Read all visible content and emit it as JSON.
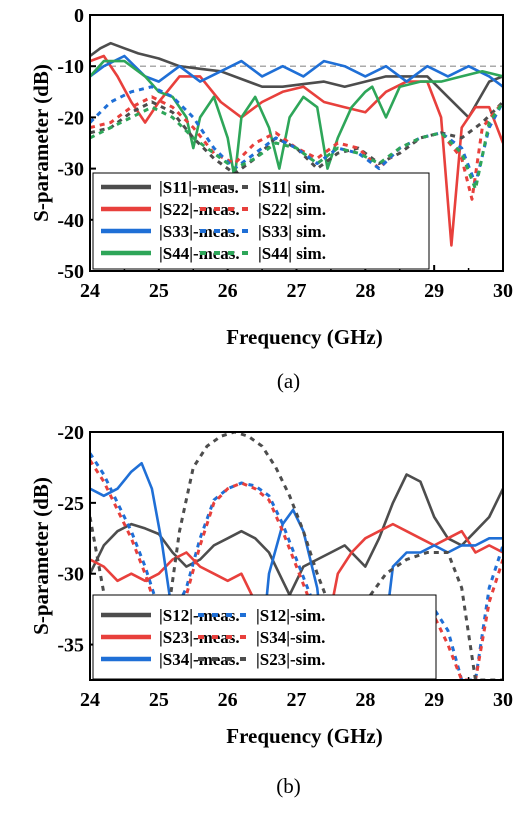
{
  "chart_data": [
    {
      "type": "line",
      "caption": "(a)",
      "xlabel": "Frequency (GHz)",
      "ylabel": "S-parameter (dB)",
      "xlim": [
        24,
        30
      ],
      "ylim": [
        -50,
        0
      ],
      "x_ticks": [
        "24",
        "25",
        "26",
        "27",
        "28",
        "29",
        "30"
      ],
      "y_ticks": [
        "0",
        "-10",
        "-20",
        "-30",
        "-40",
        "-50"
      ],
      "reference_line": {
        "y": -10,
        "style": "dashed",
        "color": "#aaaaaa"
      },
      "legend_position": "bottom-left",
      "series": [
        {
          "name": "|S11|-meas.",
          "color": "#4d4d4d",
          "style": "solid",
          "x": [
            24,
            24.15,
            24.3,
            24.5,
            24.7,
            25.0,
            25.3,
            25.6,
            25.9,
            26.2,
            26.5,
            26.8,
            27.1,
            27.4,
            27.7,
            28.0,
            28.3,
            28.6,
            28.9,
            29.2,
            29.5,
            29.8,
            30
          ],
          "y": [
            -8,
            -6.5,
            -5.5,
            -6.5,
            -7.5,
            -8.5,
            -10,
            -10.5,
            -11,
            -12.5,
            -14,
            -14,
            -13.5,
            -13,
            -14,
            -13,
            -12,
            -12,
            -12,
            -16,
            -20,
            -13,
            -12
          ]
        },
        {
          "name": "|S22|-meas.",
          "color": "#e8403c",
          "style": "solid",
          "x": [
            24,
            24.2,
            24.4,
            24.6,
            24.8,
            25.0,
            25.3,
            25.6,
            25.9,
            26.2,
            26.5,
            26.8,
            27.1,
            27.4,
            27.7,
            28.0,
            28.3,
            28.6,
            28.9,
            29.1,
            29.25,
            29.4,
            29.6,
            29.8,
            30
          ],
          "y": [
            -9,
            -8,
            -12,
            -17,
            -21,
            -17,
            -12,
            -12,
            -17,
            -20,
            -17,
            -15,
            -14,
            -17,
            -18,
            -19,
            -15,
            -13,
            -13,
            -20,
            -45,
            -22,
            -18,
            -18,
            -25
          ]
        },
        {
          "name": "|S33|-meas.",
          "color": "#1f6fd6",
          "style": "solid",
          "x": [
            24,
            24.2,
            24.5,
            24.8,
            25.0,
            25.3,
            25.6,
            25.9,
            26.2,
            26.5,
            26.8,
            27.1,
            27.4,
            27.7,
            28.0,
            28.3,
            28.6,
            28.9,
            29.2,
            29.5,
            29.8,
            30
          ],
          "y": [
            -12,
            -10,
            -8,
            -12,
            -13,
            -10,
            -13,
            -11,
            -9,
            -12,
            -10,
            -12,
            -9,
            -10,
            -12,
            -10,
            -13,
            -10,
            -12,
            -10,
            -12,
            -14
          ]
        },
        {
          "name": "|S44|-meas.",
          "color": "#2ea659",
          "style": "solid",
          "x": [
            24,
            24.2,
            24.5,
            24.8,
            25.0,
            25.2,
            25.4,
            25.5,
            25.6,
            25.8,
            26.0,
            26.1,
            26.2,
            26.4,
            26.6,
            26.75,
            26.9,
            27.1,
            27.3,
            27.45,
            27.6,
            27.8,
            28.0,
            28.1,
            28.3,
            28.5,
            28.8,
            29.1,
            29.4,
            29.7,
            30
          ],
          "y": [
            -12,
            -9,
            -9,
            -12,
            -15,
            -16,
            -20,
            -26,
            -20,
            -16,
            -24,
            -32,
            -20,
            -16,
            -22,
            -30,
            -20,
            -16,
            -18,
            -30,
            -24,
            -18,
            -15,
            -14,
            -20,
            -14,
            -13,
            -13,
            -12,
            -11,
            -12
          ]
        },
        {
          "name": "|S11| sim.",
          "color": "#4d4d4d",
          "style": "dotted",
          "x": [
            24,
            24.3,
            24.6,
            24.9,
            25.2,
            25.5,
            25.8,
            26.1,
            26.4,
            26.7,
            27.0,
            27.3,
            27.6,
            27.9,
            28.2,
            28.5,
            28.8,
            29.1,
            29.4,
            29.7,
            30
          ],
          "y": [
            -23,
            -22,
            -19,
            -17,
            -19,
            -24,
            -28,
            -31,
            -28,
            -24,
            -26,
            -30,
            -27,
            -26,
            -29,
            -27,
            -24,
            -23,
            -24,
            -21,
            -17
          ]
        },
        {
          "name": "|S22| sim.",
          "color": "#e8403c",
          "style": "dotted",
          "x": [
            24,
            24.3,
            24.6,
            24.9,
            25.2,
            25.5,
            25.8,
            26.1,
            26.4,
            26.7,
            27.0,
            27.3,
            27.6,
            27.9,
            28.2,
            28.5,
            28.8,
            29.1,
            29.4,
            29.55,
            29.7,
            30
          ],
          "y": [
            -22,
            -21,
            -18,
            -16,
            -18,
            -22,
            -27,
            -29,
            -25,
            -23,
            -26,
            -28,
            -25,
            -26,
            -30,
            -26,
            -24,
            -23,
            -28,
            -36,
            -22,
            -17
          ]
        },
        {
          "name": "|S33| sim.",
          "color": "#1f6fd6",
          "style": "dotted",
          "x": [
            24,
            24.3,
            24.6,
            24.9,
            25.2,
            25.5,
            25.8,
            26.1,
            26.4,
            26.7,
            27.0,
            27.3,
            27.6,
            27.9,
            28.2,
            28.5,
            28.8,
            29.1,
            29.4,
            29.6,
            29.8,
            30
          ],
          "y": [
            -21,
            -17,
            -15,
            -14,
            -16,
            -20,
            -26,
            -30,
            -27,
            -24,
            -26,
            -29,
            -26,
            -27,
            -30,
            -26,
            -24,
            -23,
            -26,
            -33,
            -22,
            -17
          ]
        },
        {
          "name": "|S44| sim.",
          "color": "#2ea659",
          "style": "dotted",
          "x": [
            24,
            24.3,
            24.6,
            24.9,
            25.2,
            25.5,
            25.8,
            26.1,
            26.4,
            26.7,
            27.0,
            27.3,
            27.6,
            27.9,
            28.2,
            28.5,
            28.8,
            29.1,
            29.4,
            29.6,
            29.8,
            30
          ],
          "y": [
            -24,
            -22,
            -20,
            -18,
            -20,
            -24,
            -27,
            -30,
            -28,
            -25,
            -26,
            -29,
            -26,
            -27,
            -29,
            -26,
            -24,
            -23,
            -27,
            -34,
            -21,
            -17
          ]
        }
      ]
    },
    {
      "type": "line",
      "caption": "(b)",
      "xlabel": "Frequency (GHz)",
      "ylabel": "S-parameter (dB)",
      "xlim": [
        24,
        30
      ],
      "ylim": [
        -37.5,
        -20
      ],
      "x_ticks": [
        "24",
        "25",
        "26",
        "27",
        "28",
        "29",
        "30"
      ],
      "y_ticks": [
        "-20",
        "-25",
        "-30",
        "-35"
      ],
      "y_tick_values": [
        -20,
        -25,
        -30,
        -35
      ],
      "legend_position": "bottom-left",
      "series": [
        {
          "name": "|S12|-meas.",
          "color": "#4d4d4d",
          "style": "solid",
          "x": [
            24,
            24.2,
            24.4,
            24.6,
            24.8,
            25.0,
            25.2,
            25.4,
            25.6,
            25.8,
            26.0,
            26.2,
            26.4,
            26.6,
            26.8,
            26.9,
            27.1,
            27.3,
            27.5,
            27.7,
            28.0,
            28.2,
            28.4,
            28.6,
            28.8,
            29.0,
            29.2,
            29.4,
            29.6,
            29.8,
            30
          ],
          "y": [
            -30,
            -28,
            -27,
            -26.5,
            -26.8,
            -27.2,
            -28.5,
            -29.5,
            -29,
            -28,
            -27.5,
            -27,
            -27.5,
            -28.5,
            -30.5,
            -31.5,
            -29.5,
            -29,
            -28.5,
            -28,
            -29.5,
            -27.5,
            -25,
            -23,
            -23.5,
            -26,
            -27.5,
            -28,
            -27,
            -26,
            -24
          ]
        },
        {
          "name": "|S23|-meas.",
          "color": "#e8403c",
          "style": "solid",
          "x": [
            24,
            24.2,
            24.4,
            24.6,
            24.8,
            25.0,
            25.2,
            25.4,
            25.6,
            25.8,
            26.0,
            26.2,
            26.35,
            26.5,
            27.4,
            27.6,
            27.8,
            28.0,
            28.2,
            28.4,
            28.6,
            28.8,
            29.0,
            29.2,
            29.4,
            29.6,
            29.8,
            30
          ],
          "y": [
            -29,
            -29.5,
            -30.5,
            -30,
            -30.5,
            -30,
            -29,
            -28.5,
            -29.5,
            -30,
            -30.5,
            -30,
            -31.5,
            -35,
            -35,
            -30,
            -28.5,
            -27.5,
            -27,
            -26.5,
            -27,
            -27.5,
            -28,
            -27.5,
            -27,
            -28.5,
            -28,
            -28.5
          ]
        },
        {
          "name": "|S34|-meas.",
          "color": "#1f6fd6",
          "style": "solid",
          "x": [
            24,
            24.2,
            24.4,
            24.6,
            24.75,
            24.9,
            25.05,
            25.2,
            25.3,
            26.45,
            26.6,
            26.8,
            26.95,
            27.1,
            27.3,
            27.45,
            28.2,
            28.4,
            28.6,
            28.8,
            29.0,
            29.2,
            29.4,
            29.6,
            29.8,
            30
          ],
          "y": [
            -24,
            -24.5,
            -24,
            -22.8,
            -22.2,
            -24,
            -28,
            -33,
            -37.5,
            -37.5,
            -30,
            -26.5,
            -25.5,
            -27,
            -31,
            -37.5,
            -37.5,
            -29.5,
            -28.5,
            -28.5,
            -28,
            -28.5,
            -28,
            -28,
            -27.5,
            -27.5
          ]
        },
        {
          "name": "|S12|-sim.",
          "color": "#1f6fd6",
          "style": "dotted",
          "x": [
            24,
            24.2,
            24.4,
            24.6,
            24.8,
            25.0,
            25.2,
            25.4,
            25.6,
            25.8,
            26.0,
            26.2,
            26.4,
            26.6,
            26.8,
            27.0,
            27.2,
            27.4,
            27.6,
            27.8,
            28.3,
            28.6,
            29.0,
            29.2,
            29.4,
            29.6,
            29.8,
            30
          ],
          "y": [
            -21.5,
            -23,
            -25,
            -27,
            -29.5,
            -32.5,
            -33,
            -31,
            -27.5,
            -24.8,
            -24,
            -23.6,
            -23.8,
            -24.5,
            -26.5,
            -29,
            -31.5,
            -34,
            -37.5,
            -37.5,
            -37.5,
            -32,
            -32.5,
            -34,
            -37.5,
            -37.5,
            -31,
            -28
          ]
        },
        {
          "name": "|S34|-sim.",
          "color": "#e8403c",
          "style": "dotted",
          "x": [
            24,
            24.2,
            24.4,
            24.6,
            24.8,
            25.0,
            25.2,
            25.4,
            25.6,
            25.8,
            26.0,
            26.2,
            26.4,
            26.6,
            26.8,
            27.0,
            27.2,
            27.4,
            27.6,
            27.8,
            28.3,
            28.6,
            29.0,
            29.2,
            29.4,
            29.6,
            29.8,
            30
          ],
          "y": [
            -22,
            -23.5,
            -25.5,
            -27.5,
            -30,
            -33,
            -33.5,
            -31.5,
            -28,
            -25,
            -24,
            -23.6,
            -24,
            -24.8,
            -27,
            -29.5,
            -32,
            -34.5,
            -37.5,
            -37.5,
            -37.5,
            -33,
            -33,
            -35,
            -37.5,
            -37.5,
            -32,
            -29
          ]
        },
        {
          "name": "|S23|-sim.",
          "color": "#4d4d4d",
          "style": "dotted",
          "x": [
            24,
            24.15,
            24.3,
            24.5,
            24.7,
            25.0,
            25.3,
            25.5,
            25.7,
            25.9,
            26.1,
            26.3,
            26.5,
            26.7,
            26.9,
            27.1,
            27.3,
            27.5,
            27.7,
            28.0,
            28.3,
            28.6,
            28.9,
            29.2,
            29.4,
            29.6,
            29.8,
            30
          ],
          "y": [
            -26,
            -30,
            -34,
            -37.5,
            -37.5,
            -37.5,
            -27,
            -22.5,
            -21,
            -20.3,
            -20,
            -20.3,
            -21,
            -22.5,
            -24.5,
            -27,
            -30,
            -32.5,
            -33.5,
            -32,
            -30,
            -29,
            -28.5,
            -28.5,
            -31,
            -37.5,
            -37.5,
            -37.5
          ]
        }
      ]
    }
  ]
}
